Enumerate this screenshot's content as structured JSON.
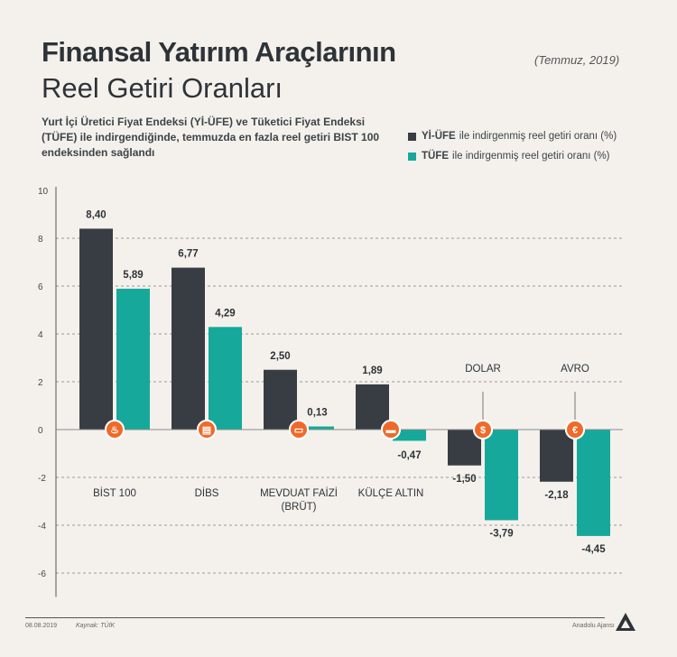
{
  "header": {
    "title_bold": "Finansal Yatırım Araçlarının",
    "title_light": "Reel Getiri Oranları",
    "date": "(Temmuz, 2019)",
    "subtitle": "Yurt İçi Üretici Fiyat Endeksi (Yİ-ÜFE) ve Tüketici Fiyat Endeksi (TÜFE) ile indirgendiğinde, temmuzda en fazla reel getiri BIST 100 endeksinden sağlandı"
  },
  "legend": [
    {
      "name": "Yİ-ÜFE",
      "text": "ile indirgenmiş reel getiri oranı (%)",
      "color": "#383d44"
    },
    {
      "name": "TÜFE",
      "text": "ile indirgenmiş reel getiri oranı (%)",
      "color": "#16a99b"
    }
  ],
  "footer": {
    "date": "08.08.2019",
    "source": "Kaynak: TÜİK",
    "agency": "Anadolu Ajansı",
    "logo_text": "AA"
  },
  "chart_data": {
    "type": "bar",
    "categories": [
      "BİST 100",
      "DİBS",
      "MEVDUAT FAİZİ (BRÜT)",
      "KÜLÇE ALTIN",
      "DOLAR",
      "AVRO"
    ],
    "category_lines": [
      [
        "BİST 100"
      ],
      [
        "DİBS"
      ],
      [
        "MEVDUAT FAİZİ",
        "(BRÜT)"
      ],
      [
        "KÜLÇE ALTIN"
      ],
      [
        "DOLAR"
      ],
      [
        "AVRO"
      ]
    ],
    "series": [
      {
        "name": "Yİ-ÜFE",
        "values": [
          8.4,
          6.77,
          2.5,
          1.89,
          -1.5,
          -2.18
        ],
        "labels": [
          "8,40",
          "6,77",
          "2,50",
          "1,89",
          "-1,50",
          "-2,18"
        ],
        "color": "#383d44"
      },
      {
        "name": "TÜFE",
        "values": [
          5.89,
          4.29,
          0.13,
          -0.47,
          -3.79,
          -4.45
        ],
        "labels": [
          "5,89",
          "4,29",
          "0,13",
          "-0,47",
          "-3,79",
          "-4,45"
        ],
        "color": "#16a99b"
      }
    ],
    "y_ticks": [
      10,
      8,
      6,
      4,
      2,
      0,
      -2,
      -4,
      -6
    ],
    "ylim": [
      -7,
      10
    ],
    "grid": true,
    "icons": [
      "fire-icon",
      "document-icon",
      "banknote-icon",
      "gold-bar-icon",
      "dollar-icon",
      "euro-icon"
    ],
    "icon_color": "#ef6a2a"
  }
}
